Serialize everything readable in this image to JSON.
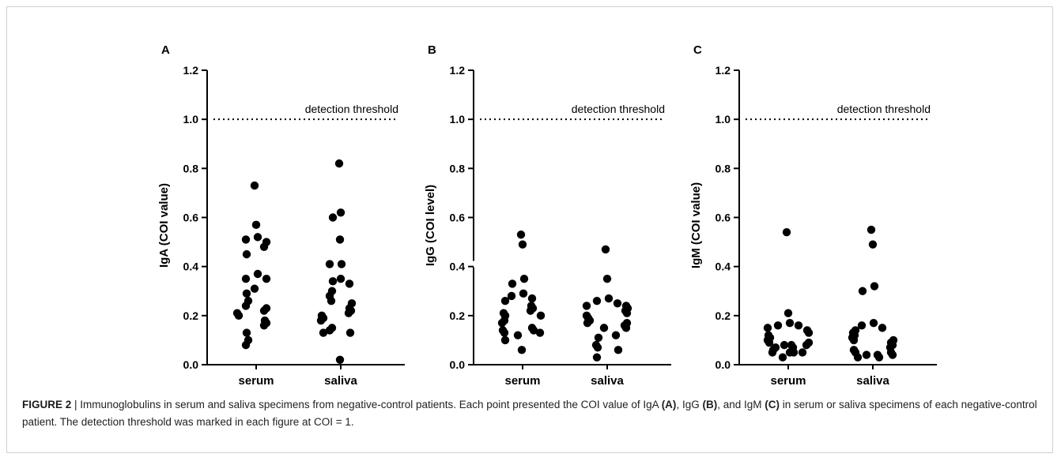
{
  "chart_data": [
    {
      "type": "scatter",
      "panel_label": "A",
      "ylabel": "IgA (COI value)",
      "categories": [
        "serum",
        "saliva"
      ],
      "ylim": [
        0,
        1.2
      ],
      "yticks": [
        "0.0",
        "0.2",
        "0.4",
        "0.6",
        "0.8",
        "1.0",
        "1.2"
      ],
      "threshold": 1.0,
      "threshold_label": "detection threshold",
      "series": [
        {
          "values": [
            0.73,
            0.57,
            0.52,
            0.51,
            0.5,
            0.48,
            0.45,
            0.37,
            0.35,
            0.35,
            0.31,
            0.29,
            0.26,
            0.24,
            0.23,
            0.22,
            0.21,
            0.2,
            0.18,
            0.17,
            0.16,
            0.13,
            0.1,
            0.08
          ]
        },
        {
          "values": [
            0.82,
            0.62,
            0.6,
            0.51,
            0.41,
            0.41,
            0.35,
            0.34,
            0.33,
            0.3,
            0.28,
            0.26,
            0.25,
            0.23,
            0.22,
            0.21,
            0.2,
            0.19,
            0.18,
            0.15,
            0.14,
            0.13,
            0.13,
            0.02
          ]
        }
      ]
    },
    {
      "type": "scatter",
      "panel_label": "B",
      "ylabel": "IgG (COI level)",
      "categories": [
        "serum",
        "saliva"
      ],
      "ylim": [
        0,
        1.2
      ],
      "yticks": [
        "0.0",
        "0.2",
        "0.4",
        "0.6",
        "0.8",
        "1.0",
        "1.2"
      ],
      "axis_break_at": 0.41,
      "threshold": 1.0,
      "threshold_label": "detection threshold",
      "series": [
        {
          "values": [
            0.53,
            0.49,
            0.35,
            0.33,
            0.29,
            0.28,
            0.27,
            0.26,
            0.24,
            0.23,
            0.22,
            0.21,
            0.2,
            0.2,
            0.18,
            0.17,
            0.15,
            0.14,
            0.14,
            0.13,
            0.13,
            0.12,
            0.1,
            0.06
          ]
        },
        {
          "values": [
            0.47,
            0.35,
            0.27,
            0.26,
            0.25,
            0.24,
            0.24,
            0.23,
            0.22,
            0.21,
            0.2,
            0.19,
            0.18,
            0.17,
            0.17,
            0.16,
            0.15,
            0.15,
            0.12,
            0.11,
            0.08,
            0.07,
            0.06,
            0.03
          ]
        }
      ]
    },
    {
      "type": "scatter",
      "panel_label": "C",
      "ylabel": "IgM (COI value)",
      "categories": [
        "serum",
        "saliva"
      ],
      "ylim": [
        0,
        1.2
      ],
      "yticks": [
        "0.0",
        "0.2",
        "0.4",
        "0.6",
        "0.8",
        "1.0",
        "1.2"
      ],
      "threshold": 1.0,
      "threshold_label": "detection threshold",
      "series": [
        {
          "values": [
            0.54,
            0.21,
            0.17,
            0.16,
            0.16,
            0.15,
            0.14,
            0.13,
            0.12,
            0.11,
            0.1,
            0.09,
            0.09,
            0.08,
            0.08,
            0.08,
            0.07,
            0.07,
            0.06,
            0.05,
            0.05,
            0.05,
            0.05,
            0.03
          ]
        },
        {
          "values": [
            0.55,
            0.49,
            0.32,
            0.3,
            0.17,
            0.16,
            0.15,
            0.14,
            0.13,
            0.12,
            0.11,
            0.1,
            0.1,
            0.09,
            0.08,
            0.07,
            0.06,
            0.05,
            0.05,
            0.04,
            0.04,
            0.04,
            0.03,
            0.03
          ]
        }
      ]
    }
  ],
  "caption": {
    "figure_label": "FIGURE 2",
    "separator": " | ",
    "part1": "Immunoglobulins in serum and saliva specimens from negative-control patients. Each point presented the COI value of IgA ",
    "ref_a": "(A)",
    "part2": ", IgG ",
    "ref_b": "(B)",
    "part3": ", and IgM ",
    "ref_c": "(C)",
    "part4": " in serum or saliva specimens of each negative-control patient. The detection threshold was marked in each figure at COI = 1."
  },
  "colors": {
    "dot": "#000000",
    "axis": "#000000",
    "frame": "#d0d0d0"
  }
}
